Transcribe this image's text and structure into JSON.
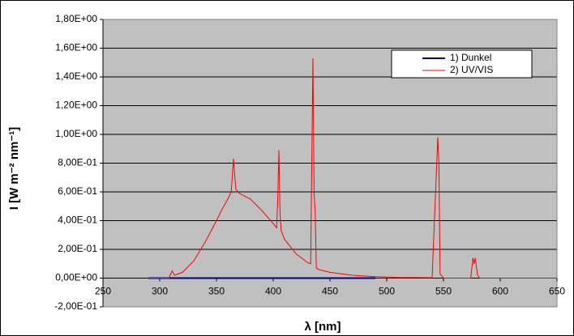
{
  "chart_data": {
    "type": "line",
    "x_label": "λ [nm]",
    "y_label": "I [W m⁻² nm⁻¹]",
    "x": [
      290,
      308,
      311,
      313,
      320,
      330,
      340,
      350,
      355,
      360,
      363,
      365,
      367,
      370,
      380,
      390,
      400,
      403,
      404,
      405,
      406,
      407,
      410,
      420,
      430,
      433,
      435,
      436,
      437,
      438,
      440,
      450,
      470,
      490,
      510,
      540,
      545,
      546,
      547,
      550,
      574,
      576,
      577,
      578,
      580,
      582,
      650
    ],
    "series": [
      {
        "name": "1) Dunkel",
        "color": "#000080",
        "values": [
          0,
          0,
          0,
          0,
          0,
          0,
          0,
          0,
          0,
          0,
          0,
          0,
          0,
          0,
          0,
          0,
          0,
          0,
          0,
          0,
          0,
          0,
          0,
          0,
          0,
          0,
          0,
          0,
          0,
          0,
          0,
          0,
          0,
          0,
          null,
          null,
          null,
          null,
          null,
          null,
          null,
          null,
          null,
          null,
          null,
          null,
          null
        ]
      },
      {
        "name": "2) UV/VIS",
        "color": "#ff0000",
        "values": [
          0,
          0,
          0.05,
          0.02,
          0.04,
          0.12,
          0.25,
          0.4,
          0.48,
          0.55,
          0.6,
          0.83,
          0.62,
          0.59,
          0.55,
          0.47,
          0.38,
          0.35,
          0.55,
          0.89,
          0.45,
          0.33,
          0.27,
          0.17,
          0.11,
          0.1,
          1.53,
          0.6,
          0.45,
          0.07,
          0.06,
          0.04,
          0.02,
          0.01,
          0.005,
          0.003,
          0.98,
          0.8,
          0.03,
          0,
          0,
          0.14,
          0.1,
          0.14,
          0.02,
          0,
          0
        ]
      }
    ],
    "xlim": [
      250,
      650
    ],
    "xticks": [
      250,
      300,
      350,
      400,
      450,
      500,
      550,
      600,
      650
    ],
    "ylim": [
      -0.2,
      1.8
    ],
    "yticks": [
      {
        "value": -0.2,
        "label": "-2,00E-01"
      },
      {
        "value": 0,
        "label": "0,00E+00"
      },
      {
        "value": 0.2,
        "label": "2,00E-01"
      },
      {
        "value": 0.4,
        "label": "4,00E-01"
      },
      {
        "value": 0.6,
        "label": "6,00E-01"
      },
      {
        "value": 0.8,
        "label": "8,00E-01"
      },
      {
        "value": 1.0,
        "label": "1,00E+00"
      },
      {
        "value": 1.2,
        "label": "1,20E+00"
      },
      {
        "value": 1.4,
        "label": "1,40E+00"
      },
      {
        "value": 1.6,
        "label": "1,60E+00"
      },
      {
        "value": 1.8,
        "label": "1,80E+00"
      }
    ],
    "grid": true,
    "legend": "upper right",
    "plot_background": "#c0c0c0"
  }
}
